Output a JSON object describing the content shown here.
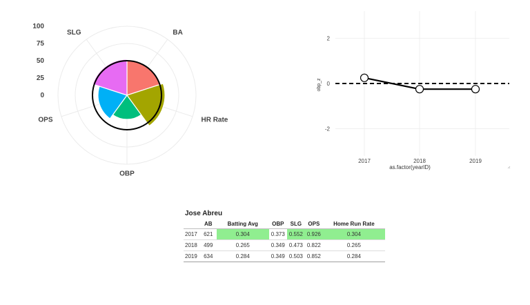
{
  "chart_data": [
    {
      "type": "polar-bar",
      "categories": [
        "BA",
        "HR Rate",
        "OBP",
        "OPS",
        "SLG"
      ],
      "values": [
        51,
        55,
        35,
        42,
        52
      ],
      "colors": [
        "#f8766d",
        "#a3a500",
        "#00bf7d",
        "#00b0f6",
        "#e76bf3"
      ],
      "reference_value": 50,
      "rlim": [
        0,
        100
      ],
      "radial_ticks": [
        "100",
        "75",
        "50",
        "25",
        "0"
      ]
    },
    {
      "type": "line",
      "x": [
        "2017",
        "2018",
        "2019"
      ],
      "y": [
        0.25,
        -0.25,
        -0.25
      ],
      "xlabel": "as.factor(yearID)",
      "ylabel": "obp_z",
      "yticks": [
        "2",
        "0",
        "-2"
      ],
      "ylim": [
        -3.2,
        3.2
      ],
      "reference_line": 0
    }
  ],
  "table": {
    "title": "Jose Abreu",
    "headers": [
      "",
      "AB",
      "Batting Avg",
      "OBP",
      "SLG",
      "OPS",
      "Home Run Rate"
    ],
    "rows": [
      [
        "2017",
        "621",
        "0.304",
        "0.373",
        "0.552",
        "0.926",
        "0.304"
      ],
      [
        "2018",
        "499",
        "0.265",
        "0.349",
        "0.473",
        "0.822",
        "0.265"
      ],
      [
        "2019",
        "634",
        "0.284",
        "0.349",
        "0.503",
        "0.852",
        "0.284"
      ]
    ],
    "highlight_color": "#90ee90",
    "highlighted_cells": [
      [
        0,
        2
      ],
      [
        0,
        4
      ],
      [
        0,
        5
      ],
      [
        0,
        6
      ]
    ]
  }
}
